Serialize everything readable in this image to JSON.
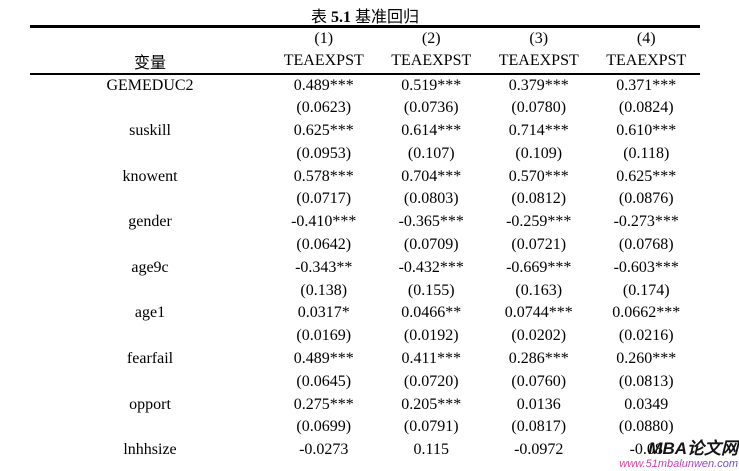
{
  "title": {
    "prefix": "表 ",
    "number": "5.1",
    "suffix": " 基准回归"
  },
  "table": {
    "variable_header": "变量",
    "column_numbers": [
      "(1)",
      "(2)",
      "(3)",
      "(4)"
    ],
    "column_names": [
      "TEAEXPST",
      "TEAEXPST",
      "TEAEXPST",
      "TEAEXPST"
    ],
    "rows": [
      {
        "label": "GEMEDUC2",
        "cells": [
          "0.489***",
          "0.519***",
          "0.379***",
          "0.371***"
        ]
      },
      {
        "label": "",
        "cells": [
          "(0.0623)",
          "(0.0736)",
          "(0.0780)",
          "(0.0824)"
        ]
      },
      {
        "label": "suskill",
        "cells": [
          "0.625***",
          "0.614***",
          "0.714***",
          "0.610***"
        ]
      },
      {
        "label": "",
        "cells": [
          "(0.0953)",
          "(0.107)",
          "(0.109)",
          "(0.118)"
        ]
      },
      {
        "label": "knowent",
        "cells": [
          "0.578***",
          "0.704***",
          "0.570***",
          "0.625***"
        ]
      },
      {
        "label": "",
        "cells": [
          "(0.0717)",
          "(0.0803)",
          "(0.0812)",
          "(0.0876)"
        ]
      },
      {
        "label": "gender",
        "cells": [
          "-0.410***",
          "-0.365***",
          "-0.259***",
          "-0.273***"
        ]
      },
      {
        "label": "",
        "cells": [
          "(0.0642)",
          "(0.0709)",
          "(0.0721)",
          "(0.0768)"
        ]
      },
      {
        "label": "age9c",
        "cells": [
          "-0.343**",
          "-0.432***",
          "-0.669***",
          "-0.603***"
        ]
      },
      {
        "label": "",
        "cells": [
          "(0.138)",
          "(0.155)",
          "(0.163)",
          "(0.174)"
        ]
      },
      {
        "label": "age1",
        "cells": [
          "0.0317*",
          "0.0466**",
          "0.0744***",
          "0.0662***"
        ]
      },
      {
        "label": "",
        "cells": [
          "(0.0169)",
          "(0.0192)",
          "(0.0202)",
          "(0.0216)"
        ]
      },
      {
        "label": "fearfail",
        "cells": [
          "0.489***",
          "0.411***",
          "0.286***",
          "0.260***"
        ]
      },
      {
        "label": "",
        "cells": [
          "(0.0645)",
          "(0.0720)",
          "(0.0760)",
          "(0.0813)"
        ]
      },
      {
        "label": "opport",
        "cells": [
          "0.275***",
          "0.205***",
          "0.0136",
          "0.0349"
        ]
      },
      {
        "label": "",
        "cells": [
          "(0.0699)",
          "(0.0791)",
          "(0.0817)",
          "(0.0880)"
        ]
      },
      {
        "label": "lnhhsize",
        "cells": [
          "-0.0273",
          "0.115",
          "-0.0972",
          "-0.08"
        ]
      }
    ]
  },
  "watermark": {
    "name": "MBA论文网",
    "url": "www.51mbalunwen.com"
  }
}
